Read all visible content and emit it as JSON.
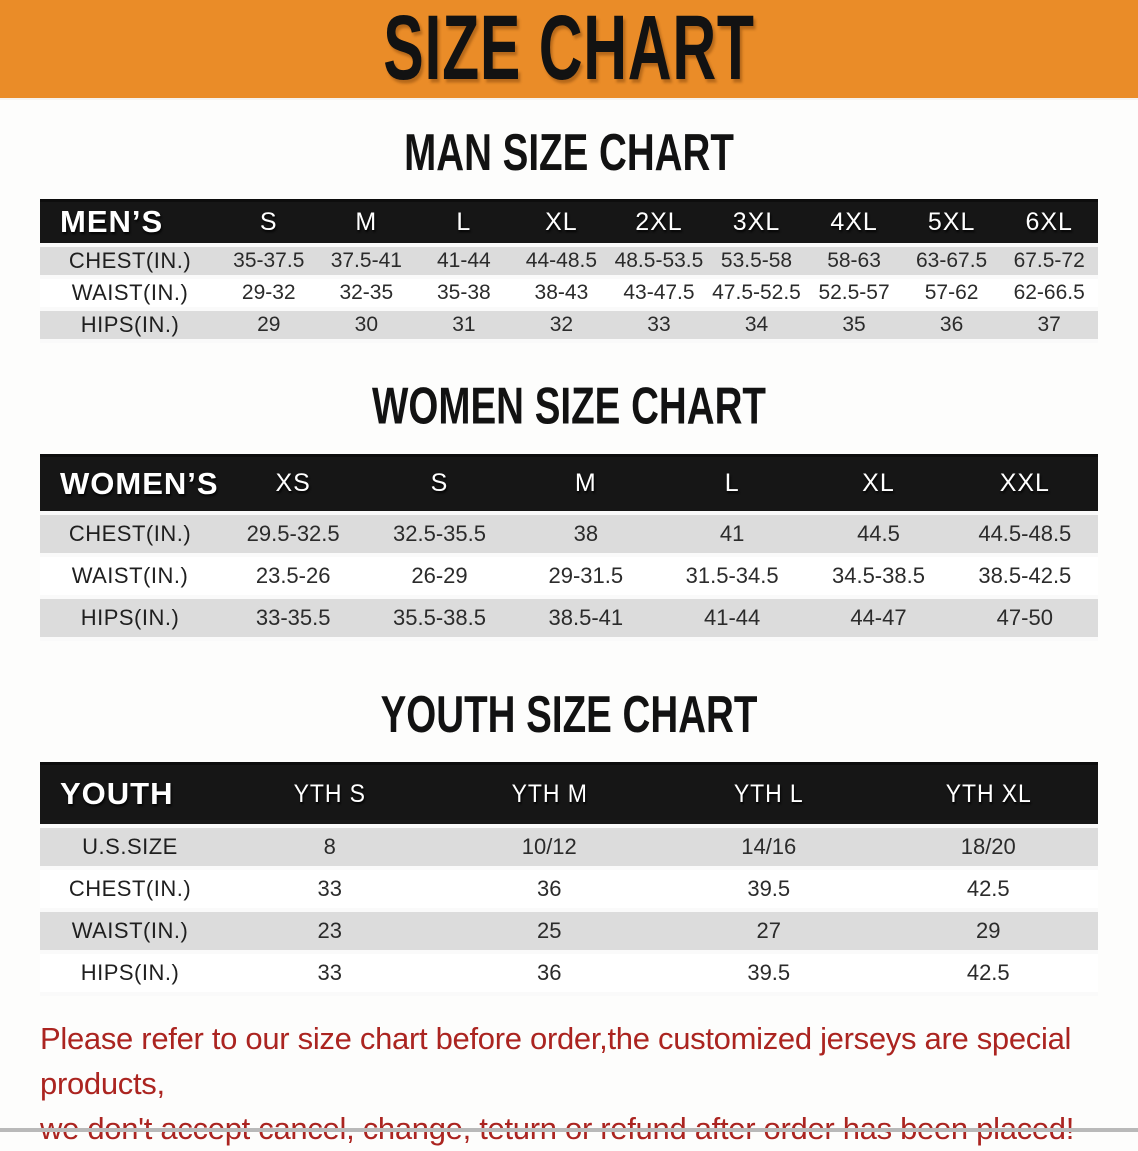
{
  "banner": {
    "title": "SIZE CHART"
  },
  "sections": [
    {
      "title": "MAN SIZE CHART",
      "table": {
        "header_label": "MEN’S",
        "columns": [
          "S",
          "M",
          "L",
          "XL",
          "2XL",
          "3XL",
          "4XL",
          "5XL",
          "6XL"
        ],
        "rows": [
          {
            "label": "CHEST(IN.)",
            "values": [
              "35-37.5",
              "37.5-41",
              "41-44",
              "44-48.5",
              "48.5-53.5",
              "53.5-58",
              "58-63",
              "63-67.5",
              "67.5-72"
            ]
          },
          {
            "label": "WAIST(IN.)",
            "values": [
              "29-32",
              "32-35",
              "35-38",
              "38-43",
              "43-47.5",
              "47.5-52.5",
              "52.5-57",
              "57-62",
              "62-66.5"
            ]
          },
          {
            "label": "HIPS(IN.)",
            "values": [
              "29",
              "30",
              "31",
              "32",
              "33",
              "34",
              "35",
              "36",
              "37"
            ]
          }
        ]
      }
    },
    {
      "title": "WOMEN SIZE CHART",
      "table": {
        "header_label": "WOMEN’S",
        "columns": [
          "XS",
          "S",
          "M",
          "L",
          "XL",
          "XXL"
        ],
        "rows": [
          {
            "label": "CHEST(IN.)",
            "values": [
              "29.5-32.5",
              "32.5-35.5",
              "38",
              "41",
              "44.5",
              "44.5-48.5"
            ]
          },
          {
            "label": "WAIST(IN.)",
            "values": [
              "23.5-26",
              "26-29",
              "29-31.5",
              "31.5-34.5",
              "34.5-38.5",
              "38.5-42.5"
            ]
          },
          {
            "label": "HIPS(IN.)",
            "values": [
              "33-35.5",
              "35.5-38.5",
              "38.5-41",
              "41-44",
              "44-47",
              "47-50"
            ]
          }
        ]
      }
    },
    {
      "title": "YOUTH SIZE CHART",
      "table": {
        "header_label": "YOUTH",
        "columns": [
          "YTH S",
          "YTH M",
          "YTH L",
          "YTH XL"
        ],
        "rows": [
          {
            "label": "U.S.SIZE",
            "values": [
              "8",
              "10/12",
              "14/16",
              "18/20"
            ]
          },
          {
            "label": "CHEST(IN.)",
            "values": [
              "33",
              "36",
              "39.5",
              "42.5"
            ]
          },
          {
            "label": "WAIST(IN.)",
            "values": [
              "23",
              "25",
              "27",
              "29"
            ]
          },
          {
            "label": "HIPS(IN.)",
            "values": [
              "33",
              "36",
              "39.5",
              "42.5"
            ]
          }
        ]
      }
    }
  ],
  "footer": {
    "line1": "Please refer to our size chart before order,the customized jerseys are special products,",
    "line2": "we don't accept cancel, change, teturn or refund after order has been placed!"
  },
  "colors": {
    "banner_bg": "#ea8c28",
    "header_bar": "#161616",
    "stripe_gray": "#dcdcdc",
    "notice_red": "#ab2420",
    "title_black": "#121212"
  }
}
